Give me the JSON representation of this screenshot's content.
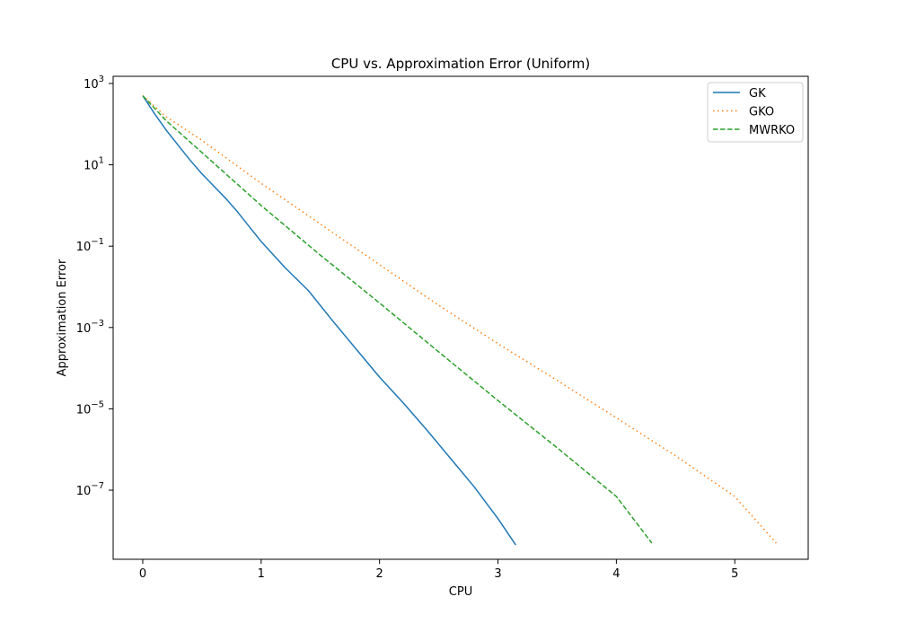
{
  "chart_data": {
    "type": "line",
    "title": "CPU vs. Approximation Error (Uniform)",
    "xlabel": "CPU",
    "ylabel": "Approximation Error",
    "xlim": [
      -0.25,
      5.62
    ],
    "ylim": [
      2e-09,
      1500
    ],
    "yscale": "log",
    "grid": false,
    "legend_position": "top-right",
    "x_ticks": [
      {
        "value": 0,
        "label": "0"
      },
      {
        "value": 1,
        "label": "1"
      },
      {
        "value": 2,
        "label": "2"
      },
      {
        "value": 3,
        "label": "3"
      },
      {
        "value": 4,
        "label": "4"
      },
      {
        "value": 5,
        "label": "5"
      }
    ],
    "y_ticks": [
      {
        "value": 1000,
        "base": "10",
        "exp": "3"
      },
      {
        "value": 10,
        "base": "10",
        "exp": "1"
      },
      {
        "value": 0.1,
        "base": "10",
        "exp": "−1"
      },
      {
        "value": 0.001,
        "base": "10",
        "exp": "−3"
      },
      {
        "value": 1e-05,
        "base": "10",
        "exp": "−5"
      },
      {
        "value": 1e-07,
        "base": "10",
        "exp": "−7"
      }
    ],
    "series": [
      {
        "name": "GK",
        "color": "#1f77b4",
        "dash": "solid",
        "points": [
          [
            0,
            500
          ],
          [
            0.05,
            300
          ],
          [
            0.1,
            180
          ],
          [
            0.2,
            70
          ],
          [
            0.3,
            30
          ],
          [
            0.4,
            13
          ],
          [
            0.5,
            6
          ],
          [
            0.6,
            3
          ],
          [
            0.7,
            1.5
          ],
          [
            0.8,
            0.7
          ],
          [
            0.9,
            0.3
          ],
          [
            1.0,
            0.13
          ],
          [
            1.2,
            0.03
          ],
          [
            1.4,
            0.008
          ],
          [
            1.6,
            0.0015
          ],
          [
            1.8,
            0.0003
          ],
          [
            2.0,
            6e-05
          ],
          [
            2.2,
            1.4e-05
          ],
          [
            2.4,
            3e-06
          ],
          [
            2.6,
            6e-07
          ],
          [
            2.8,
            1.2e-07
          ],
          [
            3.0,
            2e-08
          ],
          [
            3.15,
            4.5e-09
          ]
        ]
      },
      {
        "name": "GKO",
        "color": "#ff7f0e",
        "dash": "dotted",
        "points": [
          [
            0,
            500
          ],
          [
            0.2,
            150
          ],
          [
            0.5,
            40
          ],
          [
            1.0,
            3.5
          ],
          [
            1.5,
            0.35
          ],
          [
            2.0,
            0.035
          ],
          [
            2.5,
            0.0035
          ],
          [
            3.0,
            0.0004
          ],
          [
            3.5,
            5e-05
          ],
          [
            4.0,
            6e-06
          ],
          [
            4.5,
            7e-07
          ],
          [
            5.0,
            7e-08
          ],
          [
            5.35,
            5e-09
          ]
        ]
      },
      {
        "name": "MWRKO",
        "color": "#2ca02c",
        "dash": "dashed",
        "points": [
          [
            0,
            500
          ],
          [
            0.2,
            120
          ],
          [
            0.5,
            20
          ],
          [
            1.0,
            1.0
          ],
          [
            1.5,
            0.06
          ],
          [
            2.0,
            0.004
          ],
          [
            2.5,
            0.00025
          ],
          [
            3.0,
            1.6e-05
          ],
          [
            3.5,
            1.1e-06
          ],
          [
            4.0,
            7e-08
          ],
          [
            4.3,
            5e-09
          ]
        ]
      }
    ]
  }
}
